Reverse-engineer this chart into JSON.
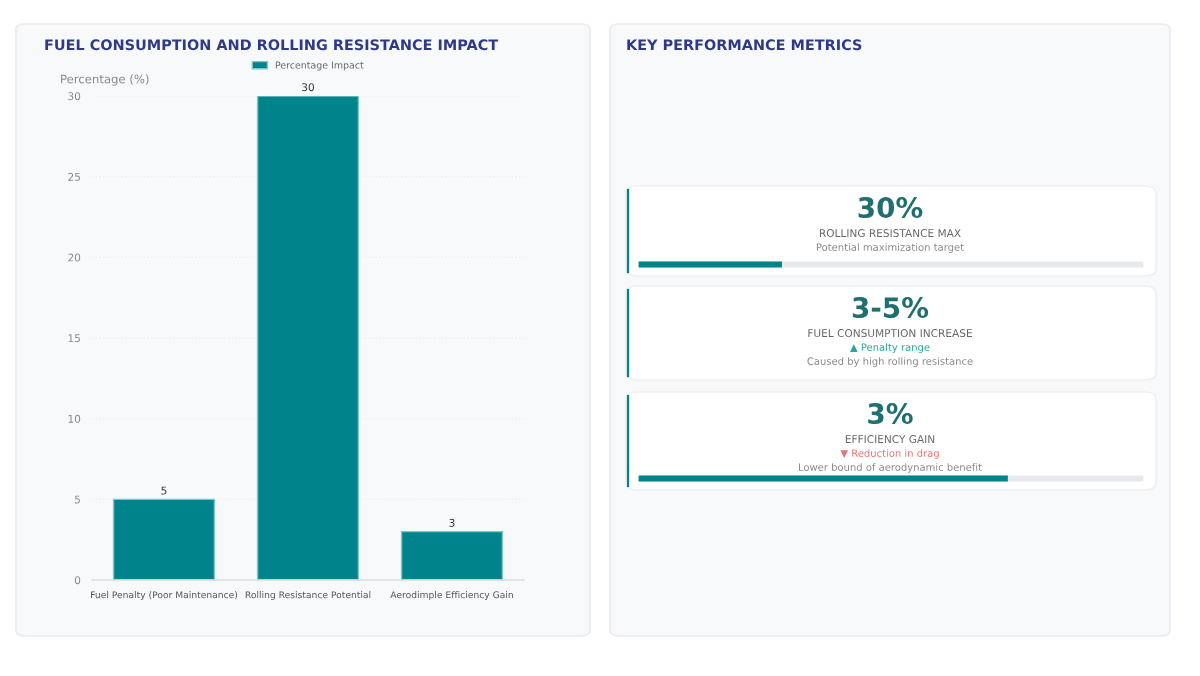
{
  "chart_data": [
    {
      "type": "bar",
      "title": "FUEL CONSUMPTION AND ROLLING RESISTANCE IMPACT",
      "ylabel": "Percentage (%)",
      "categories": [
        "Fuel Penalty (Poor Maintenance)",
        "Rolling Resistance Potential",
        "Aerodimple Efficiency Gain"
      ],
      "series": [
        {
          "name": "Percentage Impact",
          "color": "#00838a",
          "values": [
            5,
            30,
            3
          ]
        }
      ],
      "ylim": [
        0,
        30
      ],
      "yticks": [
        0,
        5,
        10,
        15,
        20,
        25,
        30
      ],
      "grid": "y",
      "legend": "top",
      "data_labels": true
    },
    {
      "type": "other",
      "title": "KEY PERFORMANCE METRICS",
      "annotations": [
        "30%",
        "ROLLING RESISTANCE MAX",
        "Potential maximization target",
        "3-5%",
        "FUEL CONSUMPTION INCREASE",
        "▲ Penalty range",
        "Caused by high rolling resistance",
        "3%",
        "EFFICIENCY GAIN",
        "▼ Reduction in drag",
        "Lower bound of aerodynamic benefit"
      ]
    }
  ]
}
